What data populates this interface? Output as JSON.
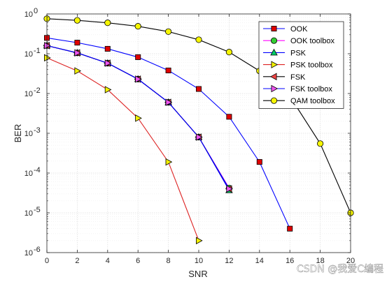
{
  "chart_data": {
    "type": "line",
    "xlabel": "SNR",
    "ylabel": "BER",
    "xlim": [
      0,
      20
    ],
    "ylim": [
      1e-06,
      1
    ],
    "yscale": "log",
    "x_ticks": [
      0,
      2,
      4,
      6,
      8,
      10,
      12,
      14,
      16,
      18,
      20
    ],
    "y_ticks": [
      {
        "value": 1,
        "base": "10",
        "exp": "0"
      },
      {
        "value": 0.1,
        "base": "10",
        "exp": "-1"
      },
      {
        "value": 0.01,
        "base": "10",
        "exp": "-2"
      },
      {
        "value": 0.001,
        "base": "10",
        "exp": "-3"
      },
      {
        "value": 0.0001,
        "base": "10",
        "exp": "-4"
      },
      {
        "value": 1e-05,
        "base": "10",
        "exp": "-5"
      },
      {
        "value": 1e-06,
        "base": "10",
        "exp": "-6"
      }
    ],
    "grid": true,
    "legend_position": "top-right",
    "series": [
      {
        "name": "OOK",
        "color": "#0000ff",
        "marker": "square",
        "marker_fill": "#e00000",
        "x": [
          0,
          2,
          4,
          6,
          8,
          10,
          12,
          14,
          16
        ],
        "y": [
          0.25,
          0.19,
          0.133,
          0.082,
          0.038,
          0.013,
          0.0026,
          0.00019,
          4e-06
        ]
      },
      {
        "name": "OOK toolbox",
        "color": "#ff00ff",
        "marker": "circle",
        "marker_fill": "#33cc33",
        "x": [
          0,
          2,
          4,
          6,
          8,
          10,
          12
        ],
        "y": [
          0.16,
          0.105,
          0.058,
          0.023,
          0.006,
          0.0008,
          4.2e-05
        ]
      },
      {
        "name": "PSK",
        "color": "#0000ff",
        "marker": "triangle-up",
        "marker_fill": "#00cc66",
        "x": [
          0,
          2,
          4,
          6,
          8,
          10,
          12
        ],
        "y": [
          0.16,
          0.105,
          0.058,
          0.023,
          0.006,
          0.0008,
          3.7e-05
        ]
      },
      {
        "name": "PSK toolbox",
        "color": "#dd2222",
        "marker": "triangle-right",
        "marker_fill": "#f2f000",
        "x": [
          0,
          2,
          4,
          6,
          8,
          10
        ],
        "y": [
          0.079,
          0.037,
          0.0125,
          0.0024,
          0.00019,
          2e-06
        ]
      },
      {
        "name": "FSK",
        "color": "#000000",
        "marker": "triangle-left",
        "marker_fill": "#ee4444",
        "x": [
          0,
          2,
          4,
          6,
          8,
          10,
          12
        ],
        "y": [
          0.16,
          0.105,
          0.058,
          0.023,
          0.006,
          0.0008,
          4e-05
        ]
      },
      {
        "name": "FSK toolbox",
        "color": "#0000ff",
        "marker": "triangle-right",
        "marker_fill": "#ee55ee",
        "x": [
          0,
          2,
          4,
          6,
          8,
          10,
          12
        ],
        "y": [
          0.16,
          0.105,
          0.058,
          0.023,
          0.006,
          0.0008,
          4e-05
        ]
      },
      {
        "name": "QAM toolbox",
        "color": "#000000",
        "marker": "circle",
        "marker_fill": "#f5f500",
        "x": [
          0,
          2,
          4,
          6,
          8,
          10,
          12,
          14,
          16,
          18,
          20
        ],
        "y": [
          0.76,
          0.69,
          0.6,
          0.49,
          0.36,
          0.225,
          0.11,
          0.037,
          0.0085,
          0.00055,
          1e-05
        ]
      }
    ]
  },
  "watermark": "CSDN @我爱C编程"
}
